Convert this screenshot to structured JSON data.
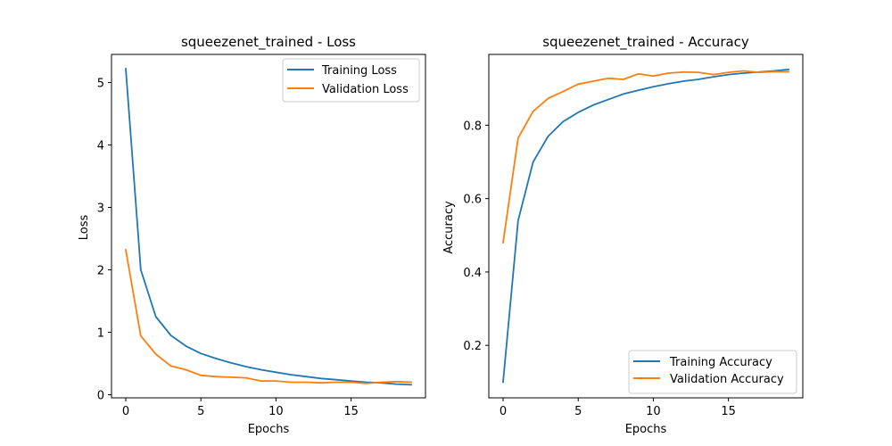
{
  "chart_data": [
    {
      "type": "line",
      "title": "squeezenet_trained - Loss",
      "xlabel": "Epochs",
      "ylabel": "Loss",
      "xlim": [
        -0.95,
        19.95
      ],
      "ylim": [
        -0.05,
        5.45
      ],
      "xticks": [
        0,
        5,
        10,
        15
      ],
      "yticks": [
        0,
        1,
        2,
        3,
        4,
        5
      ],
      "ytick_labels": [
        "0",
        "1",
        "2",
        "3",
        "4",
        "5"
      ],
      "legend_position": "upper right",
      "x": [
        0,
        1,
        2,
        3,
        4,
        5,
        6,
        7,
        8,
        9,
        10,
        11,
        12,
        13,
        14,
        15,
        16,
        17,
        18,
        19
      ],
      "series": [
        {
          "name": "Training Loss",
          "color": "#1f77b4",
          "values": [
            5.22,
            2.0,
            1.25,
            0.95,
            0.78,
            0.66,
            0.58,
            0.51,
            0.45,
            0.4,
            0.36,
            0.32,
            0.29,
            0.26,
            0.24,
            0.22,
            0.2,
            0.19,
            0.17,
            0.16
          ]
        },
        {
          "name": "Validation Loss",
          "color": "#ff7f0e",
          "values": [
            2.32,
            0.94,
            0.65,
            0.46,
            0.4,
            0.31,
            0.29,
            0.28,
            0.27,
            0.22,
            0.22,
            0.2,
            0.2,
            0.19,
            0.2,
            0.2,
            0.18,
            0.2,
            0.21,
            0.2
          ]
        }
      ]
    },
    {
      "type": "line",
      "title": "squeezenet_trained - Accuracy",
      "xlabel": "Epochs",
      "ylabel": "Accuracy",
      "xlim": [
        -0.95,
        19.95
      ],
      "ylim": [
        0.057,
        0.993
      ],
      "xticks": [
        0,
        5,
        10,
        15
      ],
      "yticks": [
        0.2,
        0.4,
        0.6,
        0.8
      ],
      "ytick_labels": [
        "0.2",
        "0.4",
        "0.6",
        "0.8"
      ],
      "legend_position": "lower right",
      "x": [
        0,
        1,
        2,
        3,
        4,
        5,
        6,
        7,
        8,
        9,
        10,
        11,
        12,
        13,
        14,
        15,
        16,
        17,
        18,
        19
      ],
      "series": [
        {
          "name": "Training Accuracy",
          "color": "#1f77b4",
          "values": [
            0.1,
            0.54,
            0.7,
            0.77,
            0.81,
            0.835,
            0.855,
            0.87,
            0.885,
            0.895,
            0.905,
            0.913,
            0.92,
            0.925,
            0.932,
            0.938,
            0.942,
            0.945,
            0.948,
            0.952
          ]
        },
        {
          "name": "Validation Accuracy",
          "color": "#ff7f0e",
          "values": [
            0.48,
            0.765,
            0.838,
            0.873,
            0.892,
            0.912,
            0.92,
            0.928,
            0.925,
            0.94,
            0.934,
            0.942,
            0.945,
            0.944,
            0.938,
            0.944,
            0.948,
            0.944,
            0.946,
            0.946
          ]
        }
      ]
    }
  ]
}
